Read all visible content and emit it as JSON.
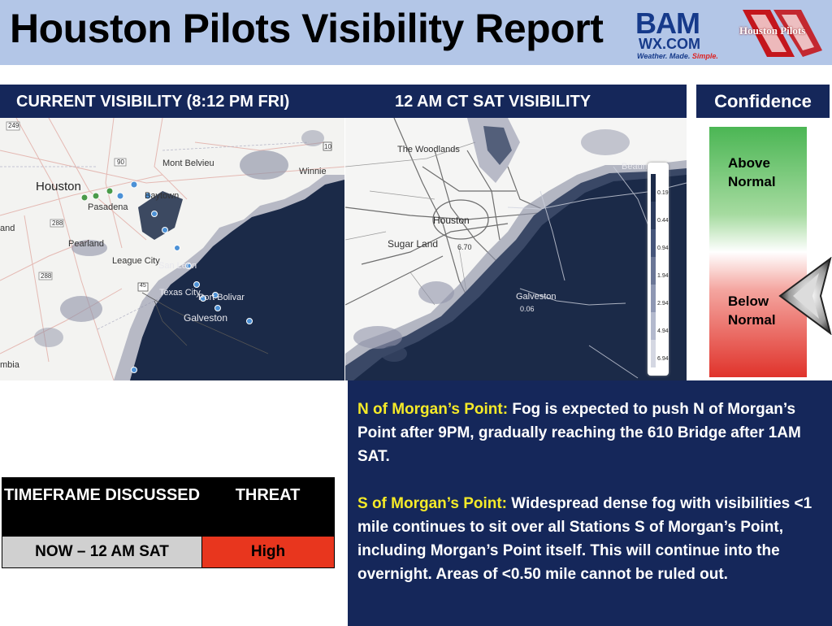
{
  "header": {
    "title": "Houston Pilots Visibility Report",
    "bam_logo": {
      "main": "BAM",
      "domain": "WX.COM",
      "tagline_a": "Weather. Made.",
      "tagline_b": "Simple."
    },
    "hp_logo": {
      "text": "Houston Pilots"
    }
  },
  "panels": {
    "current": {
      "title": "CURRENT VISIBILITY (8:12 PM FRI)"
    },
    "forecast": {
      "title": "12 AM CT SAT VISIBILITY"
    }
  },
  "map_left": {
    "labels": [
      "249",
      "90",
      "Mont Belvieu",
      "10",
      "Winnie",
      "Houston",
      "Baytown",
      "Pasadena",
      "288",
      "and",
      "Pearland",
      "League City",
      "San Leon",
      "45",
      "Texas City",
      "Port Bolivar",
      "Galveston",
      "288",
      "mbia"
    ]
  },
  "map_right": {
    "labels": [
      "The Woodlands",
      "Beaumont",
      "Houston",
      "Sugar Land",
      "6.70",
      "Galveston",
      "0.06"
    ],
    "legend_values": [
      "0.19",
      "0.44",
      "0.94",
      "1.94",
      "2.94",
      "4.94",
      "6.94"
    ],
    "legend_colors": [
      "#1b2a48",
      "#2c3c5e",
      "#45557a",
      "#6a7696",
      "#8e97b3",
      "#b3b9cd",
      "#d4d7e2"
    ]
  },
  "confidence": {
    "title": "Confidence",
    "above_line1": "Above",
    "above_line2": "Normal",
    "below_line1": "Below",
    "below_line2": "Normal",
    "selected": "Below Normal"
  },
  "info": {
    "north_heading": "N of Morgan’s Point:",
    "north_text": " Fog is expected to push N of Morgan’s Point after 9PM, gradually reaching the 610 Bridge after 1AM SAT.",
    "south_heading": "S of Morgan’s Point:",
    "south_text": " Widespread dense fog with visibilities <1 mile continues to sit over all Stations S of Morgan’s Point, including Morgan’s Point itself. This will continue into the overnight. Areas of <0.50 mile cannot be ruled out."
  },
  "threat_table": {
    "headers": [
      "TIMEFRAME DISCUSSED",
      "THREAT"
    ],
    "row": {
      "timeframe": "NOW – 12 AM SAT",
      "threat": "High"
    },
    "colors": {
      "timeframe_bg": "#d0d0d0",
      "threat_bg": "#e8361e"
    }
  },
  "colors": {
    "navy": "#15275a",
    "header_bg": "#b3c6e7",
    "highlight": "#f5ea28",
    "fog_dark": "#1b2a48"
  }
}
